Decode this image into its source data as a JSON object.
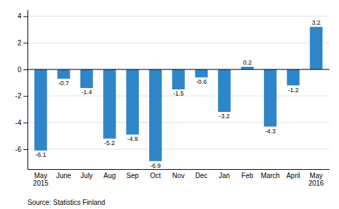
{
  "chart_data": {
    "type": "bar",
    "categories": [
      "May\n2015",
      "June",
      "July",
      "Aug",
      "Sep",
      "Oct",
      "Nov",
      "Dec",
      "Jan",
      "Feb",
      "March",
      "April",
      "May\n2016"
    ],
    "values": [
      -6.1,
      -0.7,
      -1.4,
      -5.2,
      -4.9,
      -6.9,
      -1.5,
      -0.6,
      -3.2,
      0.2,
      -4.3,
      -1.2,
      3.2
    ],
    "color": "#2e86c8",
    "ylim": [
      -7.5,
      4.5
    ],
    "yticks": [
      -6,
      -4,
      -2,
      0,
      2,
      4
    ],
    "grid": true,
    "data_labels": true,
    "annotations": [
      "Source: Statistics Finland"
    ]
  }
}
